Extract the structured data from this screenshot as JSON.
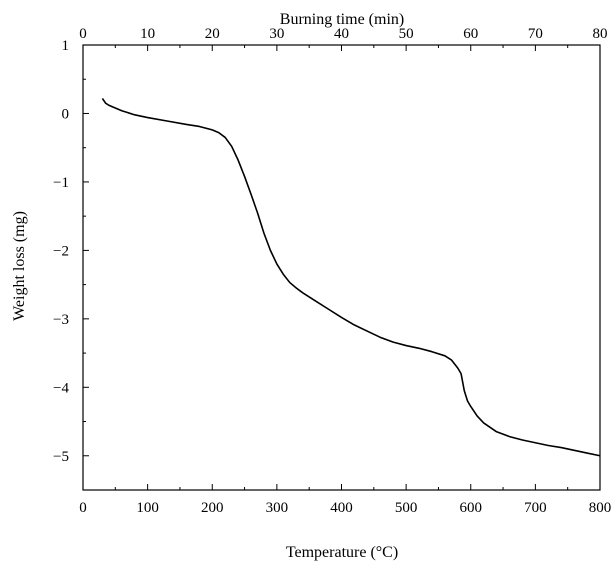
{
  "chart_data": {
    "type": "line",
    "title": "",
    "xlabel": "Temperature (°C)",
    "x2label": "Burning time (min)",
    "ylabel": "Weight loss (mg)",
    "xlim": [
      0,
      800
    ],
    "x2lim": [
      0,
      80
    ],
    "ylim": [
      -5.5,
      1
    ],
    "xticks": [
      0,
      100,
      200,
      300,
      400,
      500,
      600,
      700,
      800
    ],
    "x2ticks": [
      0,
      10,
      20,
      30,
      40,
      50,
      60,
      70,
      80
    ],
    "yticks": [
      1,
      0,
      -1,
      -2,
      -3,
      -4,
      -5
    ],
    "xtick_labels": [
      "0",
      "100",
      "200",
      "300",
      "400",
      "500",
      "600",
      "700",
      "800"
    ],
    "x2tick_labels": [
      "0",
      "10",
      "20",
      "30",
      "40",
      "50",
      "60",
      "70",
      "80"
    ],
    "ytick_labels": [
      "1",
      "0",
      "−1",
      "−2",
      "−3",
      "−4",
      "−5"
    ],
    "grid": false,
    "legend": "none",
    "series": [
      {
        "color": "#000000",
        "x": [
          30,
          35,
          40,
          50,
          60,
          80,
          100,
          130,
          160,
          180,
          200,
          210,
          220,
          230,
          240,
          250,
          260,
          270,
          280,
          290,
          300,
          310,
          320,
          330,
          340,
          360,
          380,
          400,
          420,
          440,
          460,
          480,
          500,
          520,
          540,
          560,
          570,
          580,
          585,
          590,
          595,
          600,
          610,
          620,
          640,
          660,
          680,
          700,
          720,
          740,
          760,
          780,
          800
        ],
        "y": [
          0.22,
          0.15,
          0.12,
          0.08,
          0.04,
          -0.02,
          -0.06,
          -0.11,
          -0.16,
          -0.19,
          -0.24,
          -0.28,
          -0.35,
          -0.48,
          -0.68,
          -0.92,
          -1.18,
          -1.45,
          -1.75,
          -2.0,
          -2.2,
          -2.35,
          -2.47,
          -2.55,
          -2.62,
          -2.74,
          -2.86,
          -2.98,
          -3.09,
          -3.18,
          -3.27,
          -3.34,
          -3.39,
          -3.43,
          -3.48,
          -3.54,
          -3.6,
          -3.72,
          -3.8,
          -4.05,
          -4.2,
          -4.28,
          -4.42,
          -4.52,
          -4.65,
          -4.72,
          -4.77,
          -4.81,
          -4.85,
          -4.88,
          -4.92,
          -4.96,
          -5.0
        ]
      }
    ]
  }
}
